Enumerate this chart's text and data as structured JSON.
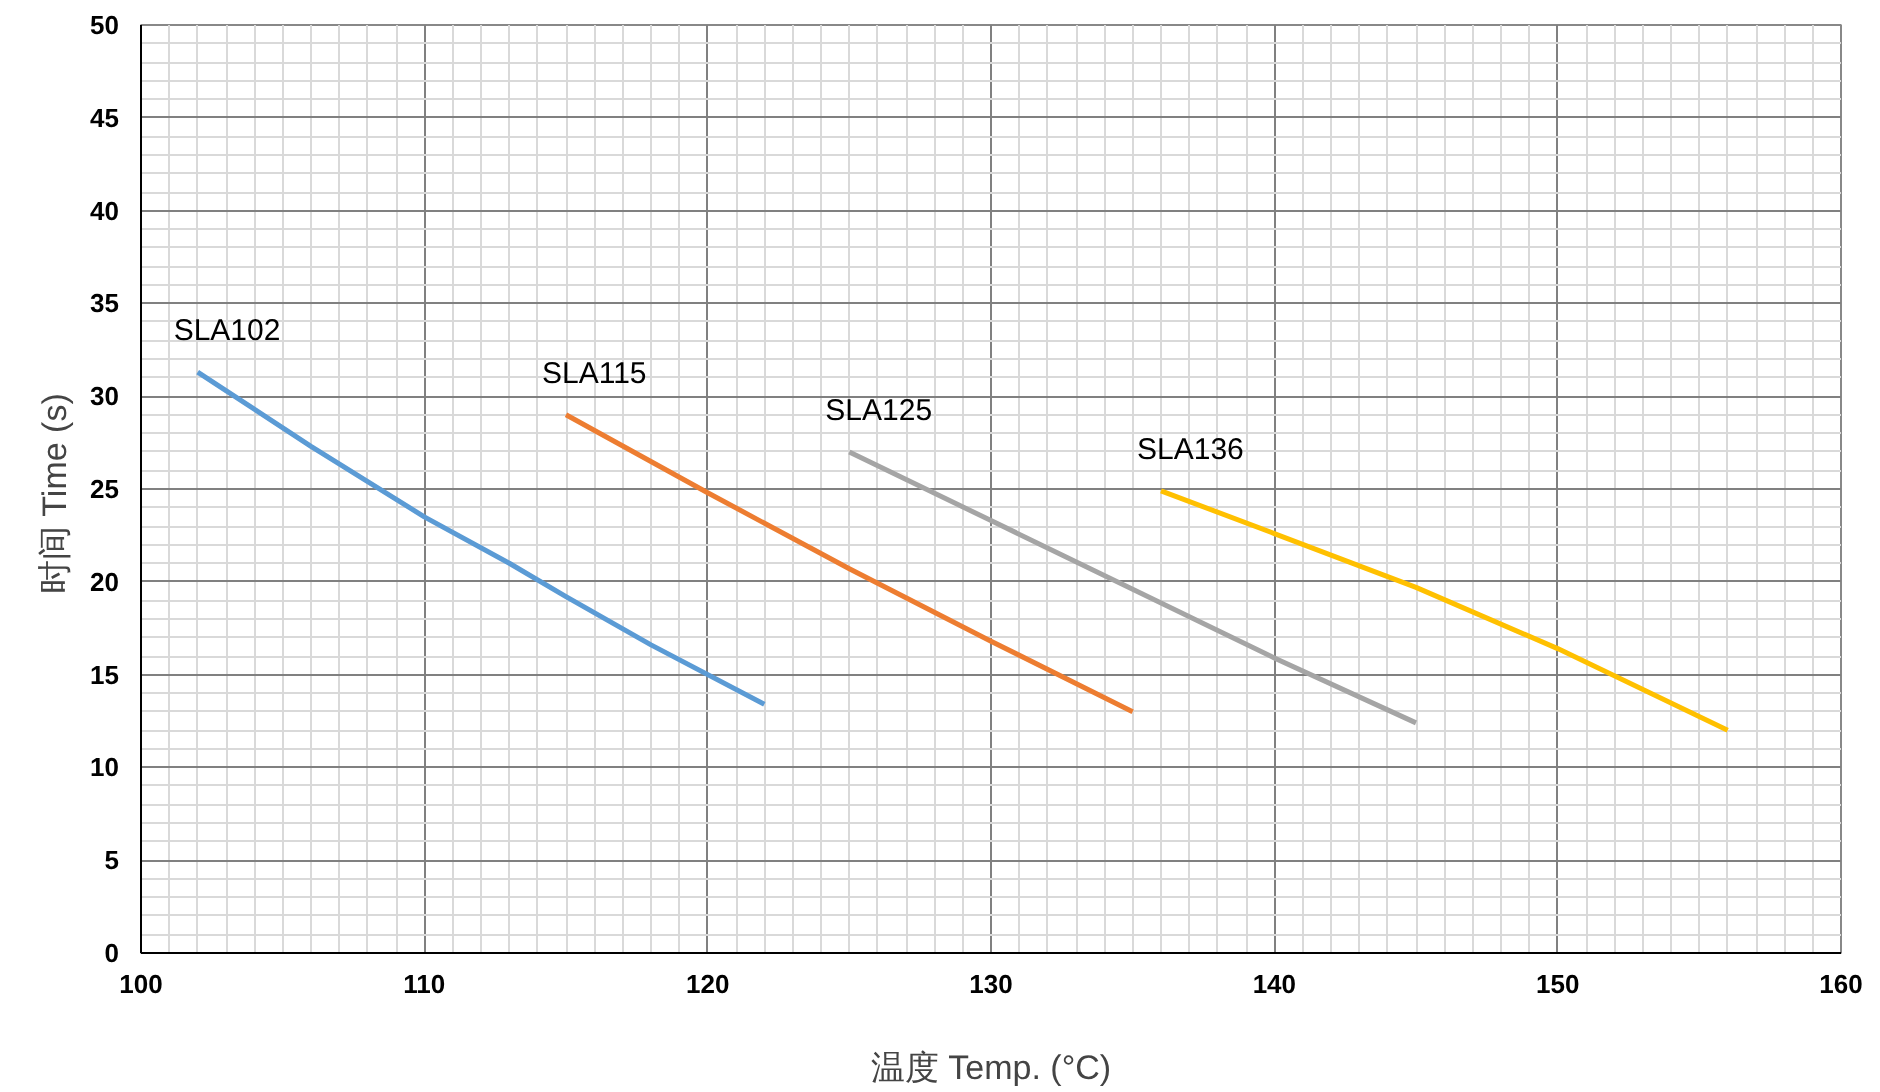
{
  "chart_data": {
    "type": "line",
    "xlabel": "温度 Temp. (°C)",
    "ylabel": "时间  Time (s)",
    "xlim": [
      100,
      160
    ],
    "xticks": [
      100,
      110,
      120,
      130,
      140,
      150,
      160
    ],
    "ylim": [
      0,
      50
    ],
    "yticks": [
      0,
      5,
      10,
      15,
      20,
      25,
      30,
      35,
      40,
      45,
      50
    ],
    "grid": true,
    "marker": "none",
    "line_style": "solid",
    "series": [
      {
        "name": "SLA102",
        "color": "#5b9bd5",
        "x": [
          102,
          106,
          110,
          113,
          115,
          118,
          122
        ],
        "values": [
          31.3,
          27.3,
          23.5,
          21,
          19.2,
          16.6,
          13.4
        ]
      },
      {
        "name": "SLA115",
        "color": "#ed7d31",
        "x": [
          115,
          120,
          125,
          130,
          135
        ],
        "values": [
          29,
          24.8,
          20.7,
          16.8,
          13
        ]
      },
      {
        "name": "SLA125",
        "color": "#a5a5a5",
        "x": [
          125,
          130,
          135,
          140,
          145
        ],
        "values": [
          27,
          23.3,
          19.6,
          15.9,
          12.4
        ]
      },
      {
        "name": "SLA136",
        "color": "#ffc000",
        "x": [
          136,
          140,
          145,
          150,
          156
        ],
        "values": [
          24.9,
          22.6,
          19.7,
          16.4,
          12
        ]
      }
    ]
  }
}
